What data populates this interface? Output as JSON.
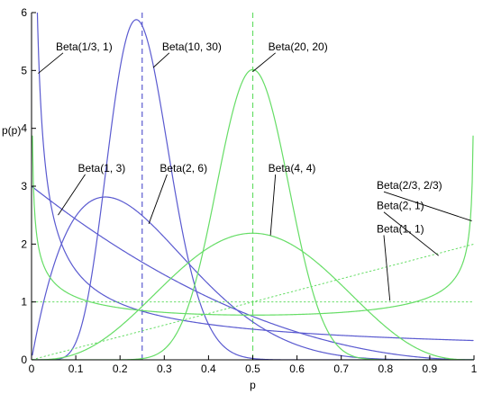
{
  "chart_data": {
    "type": "line",
    "xlabel": "p",
    "ylabel": "p(p)",
    "xlim": [
      0,
      1
    ],
    "ylim": [
      0,
      6
    ],
    "xticks": [
      "0",
      "0.1",
      "0.2",
      "0.3",
      "0.4",
      "0.5",
      "0.6",
      "0.7",
      "0.8",
      "0.9",
      "1"
    ],
    "yticks": [
      "0",
      "1",
      "2",
      "3",
      "4",
      "5",
      "6"
    ],
    "grid": false,
    "colors": {
      "blue": "#5a5ad0",
      "green": "#66dd66",
      "axis": "#000000"
    },
    "series": [
      {
        "name": "Beta(1/3, 1)",
        "a": 0.3333,
        "b": 1,
        "color": "blue",
        "style": "solid"
      },
      {
        "name": "Beta(10, 30)",
        "a": 10,
        "b": 30,
        "color": "blue",
        "style": "solid"
      },
      {
        "name": "Beta(1, 3)",
        "a": 1,
        "b": 3,
        "color": "blue",
        "style": "solid"
      },
      {
        "name": "Beta(2, 6)",
        "a": 2,
        "b": 6,
        "color": "blue",
        "style": "solid"
      },
      {
        "name": "Beta(20, 20)",
        "a": 20,
        "b": 20,
        "color": "green",
        "style": "solid"
      },
      {
        "name": "Beta(4, 4)",
        "a": 4,
        "b": 4,
        "color": "green",
        "style": "solid"
      },
      {
        "name": "Beta(2/3, 2/3)",
        "a": 0.6667,
        "b": 0.6667,
        "color": "green",
        "style": "solid"
      },
      {
        "name": "Beta(2, 1)",
        "a": 2,
        "b": 1,
        "color": "green",
        "style": "dotted"
      },
      {
        "name": "Beta(1, 1)",
        "a": 1,
        "b": 1,
        "color": "green",
        "style": "dotted"
      }
    ],
    "reference_lines": [
      {
        "x": 0.25,
        "color": "blue",
        "style": "dashed"
      },
      {
        "x": 0.5,
        "color": "green",
        "style": "dashed"
      }
    ],
    "annotations": [
      {
        "text": "Beta(1/3, 1)",
        "x": 0.055,
        "y": 5.35,
        "point_x": 0.015,
        "point_y": 4.95
      },
      {
        "text": "Beta(10, 30)",
        "x": 0.295,
        "y": 5.35,
        "point_x": 0.275,
        "point_y": 5.05
      },
      {
        "text": "Beta(20, 20)",
        "x": 0.535,
        "y": 5.35,
        "point_x": 0.5,
        "point_y": 4.98
      },
      {
        "text": "Beta(1, 3)",
        "x": 0.105,
        "y": 3.25,
        "point_x": 0.06,
        "point_y": 2.5
      },
      {
        "text": "Beta(2, 6)",
        "x": 0.29,
        "y": 3.25,
        "point_x": 0.265,
        "point_y": 2.35
      },
      {
        "text": "Beta(4, 4)",
        "x": 0.535,
        "y": 3.25,
        "point_x": 0.54,
        "point_y": 2.15
      },
      {
        "text": "Beta(2/3, 2/3)",
        "x": 0.78,
        "y": 2.95,
        "point_x": 0.995,
        "point_y": 2.4
      },
      {
        "text": "Beta(2, 1)",
        "x": 0.78,
        "y": 2.6,
        "point_x": 0.92,
        "point_y": 1.8
      },
      {
        "text": "Beta(1, 1)",
        "x": 0.78,
        "y": 2.2,
        "point_x": 0.81,
        "point_y": 1.02
      }
    ]
  }
}
